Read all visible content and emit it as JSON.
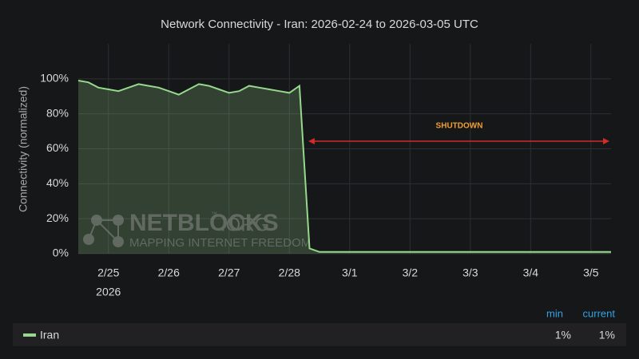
{
  "chart_data": {
    "type": "line",
    "title": "Network Connectivity - Iran: 2026-02-24 to 2026-03-05 UTC",
    "y_label": "Connectivity (normalized)",
    "categories": [
      null,
      null,
      null,
      "2/25",
      null,
      null,
      null,
      null,
      null,
      "2/26",
      null,
      null,
      null,
      null,
      null,
      "2/27",
      null,
      null,
      null,
      null,
      null,
      "2/28",
      null,
      null,
      null,
      null,
      null,
      "3/1",
      null,
      null,
      null,
      null,
      null,
      "3/2",
      null,
      null,
      null,
      null,
      null,
      "3/3",
      null,
      null,
      null,
      null,
      null,
      "3/4",
      null,
      null,
      null,
      null,
      null,
      "3/5",
      null,
      null
    ],
    "x_sublabel": "2026",
    "series": [
      {
        "name": "Iran",
        "color": "#96d98d",
        "values": [
          99,
          98,
          95,
          94,
          93,
          95,
          97,
          96,
          95,
          93,
          91,
          94,
          97,
          96,
          94,
          92,
          93,
          96,
          95,
          94,
          93,
          92,
          96,
          3,
          1,
          1,
          1,
          1,
          1,
          1,
          1,
          1,
          1,
          1,
          1,
          1,
          1,
          1,
          1,
          1,
          1,
          1,
          1,
          1,
          1,
          1,
          1,
          1,
          1,
          1,
          1,
          1,
          1,
          1
        ]
      }
    ],
    "ylim": [
      0,
      120
    ],
    "yticks": [
      {
        "value": 0,
        "label": "0%"
      },
      {
        "value": 20,
        "label": "20%"
      },
      {
        "value": 40,
        "label": "40%"
      },
      {
        "value": 60,
        "label": "60%"
      },
      {
        "value": 80,
        "label": "80%"
      },
      {
        "value": 100,
        "label": "100%"
      }
    ],
    "grid": true,
    "annotation": "SHUTDOWN",
    "legend_stats": {
      "headers": [
        "min",
        "current"
      ],
      "values": [
        "1%",
        "1%"
      ]
    },
    "watermark": {
      "brand": "NETBLOCKS",
      "tm": "™",
      "tld": ".ORG",
      "tagline": "MAPPING INTERNET FREEDOM"
    }
  }
}
